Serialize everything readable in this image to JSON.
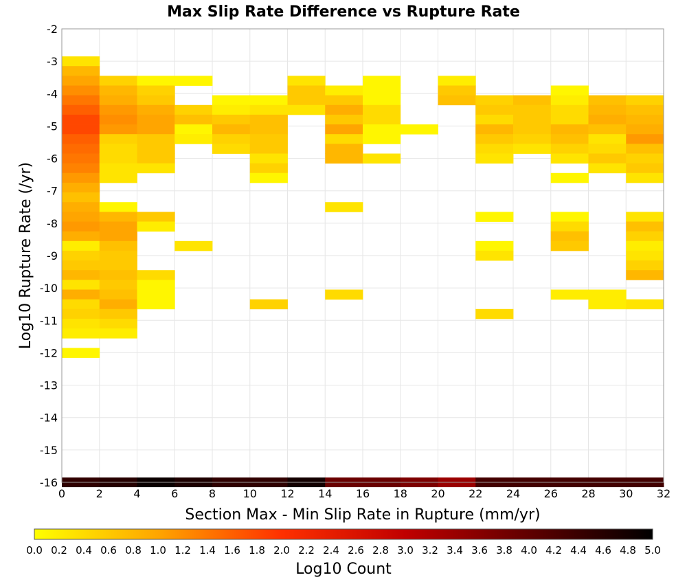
{
  "chart_data": {
    "type": "heatmap",
    "title": "Max Slip Rate Difference vs Rupture Rate",
    "xlabel": "Section Max - Min Slip Rate in Rupture (mm/yr)",
    "ylabel": "Log10 Rupture Rate (/yr)",
    "xlim": [
      0,
      32
    ],
    "ylim": [
      -16,
      -2
    ],
    "x_ticks": [
      "0",
      "2",
      "4",
      "6",
      "8",
      "10",
      "12",
      "14",
      "16",
      "18",
      "20",
      "22",
      "24",
      "26",
      "28",
      "30",
      "32"
    ],
    "y_ticks": [
      "-2",
      "-3",
      "-4",
      "-5",
      "-6",
      "-7",
      "-8",
      "-9",
      "-10",
      "-11",
      "-12",
      "-13",
      "-14",
      "-15",
      "-16"
    ],
    "grid": true,
    "x_bin_width": 2,
    "y_bin_height": 0.3,
    "colorbar": {
      "label": "Log10 Count",
      "min": 0.0,
      "max": 5.0,
      "ticks": [
        "0.0",
        "0.2",
        "0.4",
        "0.6",
        "0.8",
        "1.0",
        "1.2",
        "1.4",
        "1.6",
        "1.8",
        "2.0",
        "2.2",
        "2.4",
        "2.6",
        "2.8",
        "3.0",
        "3.2",
        "3.4",
        "3.6",
        "3.8",
        "4.0",
        "4.2",
        "4.4",
        "4.6",
        "4.8",
        "5.0"
      ],
      "colors": [
        "#ffff00",
        "#ffa500",
        "#ff3000",
        "#c00000",
        "#600000",
        "#000000"
      ]
    },
    "cells": [
      {
        "x": 0,
        "y": -3.0,
        "v": 0.3
      },
      {
        "x": 0,
        "y": -3.3,
        "v": 0.8
      },
      {
        "x": 0,
        "y": -3.6,
        "v": 1.0
      },
      {
        "x": 0,
        "y": -3.9,
        "v": 1.2
      },
      {
        "x": 0,
        "y": -4.2,
        "v": 1.4
      },
      {
        "x": 0,
        "y": -4.5,
        "v": 1.6
      },
      {
        "x": 0,
        "y": -4.8,
        "v": 1.8
      },
      {
        "x": 0,
        "y": -5.1,
        "v": 1.8
      },
      {
        "x": 0,
        "y": -5.4,
        "v": 1.6
      },
      {
        "x": 0,
        "y": -5.7,
        "v": 1.5
      },
      {
        "x": 0,
        "y": -6.0,
        "v": 1.4
      },
      {
        "x": 0,
        "y": -6.3,
        "v": 1.3
      },
      {
        "x": 0,
        "y": -6.6,
        "v": 1.1
      },
      {
        "x": 0,
        "y": -6.9,
        "v": 0.9
      },
      {
        "x": 0,
        "y": -7.2,
        "v": 0.7
      },
      {
        "x": 0,
        "y": -7.5,
        "v": 0.9
      },
      {
        "x": 0,
        "y": -7.8,
        "v": 1.0
      },
      {
        "x": 0,
        "y": -8.1,
        "v": 1.1
      },
      {
        "x": 0,
        "y": -8.4,
        "v": 0.9
      },
      {
        "x": 0,
        "y": -8.7,
        "v": 0.2
      },
      {
        "x": 0,
        "y": -9.0,
        "v": 0.5
      },
      {
        "x": 0,
        "y": -9.3,
        "v": 0.6
      },
      {
        "x": 0,
        "y": -9.6,
        "v": 0.8
      },
      {
        "x": 0,
        "y": -9.9,
        "v": 0.3
      },
      {
        "x": 0,
        "y": -10.2,
        "v": 0.9
      },
      {
        "x": 0,
        "y": -10.5,
        "v": 0.4
      },
      {
        "x": 0,
        "y": -10.8,
        "v": 0.5
      },
      {
        "x": 0,
        "y": -11.1,
        "v": 0.3
      },
      {
        "x": 0,
        "y": -11.4,
        "v": 0.2
      },
      {
        "x": 0,
        "y": -12.0,
        "v": 0.1
      },
      {
        "x": 2,
        "y": -3.6,
        "v": 0.5
      },
      {
        "x": 2,
        "y": -3.9,
        "v": 0.8
      },
      {
        "x": 2,
        "y": -4.2,
        "v": 0.9
      },
      {
        "x": 2,
        "y": -4.5,
        "v": 1.1
      },
      {
        "x": 2,
        "y": -4.8,
        "v": 1.2
      },
      {
        "x": 2,
        "y": -5.1,
        "v": 1.1
      },
      {
        "x": 2,
        "y": -5.4,
        "v": 0.5
      },
      {
        "x": 2,
        "y": -5.7,
        "v": 0.4
      },
      {
        "x": 2,
        "y": -6.0,
        "v": 0.4
      },
      {
        "x": 2,
        "y": -6.3,
        "v": 0.3
      },
      {
        "x": 2,
        "y": -6.6,
        "v": 0.3
      },
      {
        "x": 2,
        "y": -7.5,
        "v": 0.1
      },
      {
        "x": 2,
        "y": -7.8,
        "v": 0.8
      },
      {
        "x": 2,
        "y": -8.1,
        "v": 1.0
      },
      {
        "x": 2,
        "y": -8.4,
        "v": 1.0
      },
      {
        "x": 2,
        "y": -8.7,
        "v": 0.7
      },
      {
        "x": 2,
        "y": -9.0,
        "v": 0.6
      },
      {
        "x": 2,
        "y": -9.3,
        "v": 0.6
      },
      {
        "x": 2,
        "y": -9.6,
        "v": 0.7
      },
      {
        "x": 2,
        "y": -9.9,
        "v": 0.6
      },
      {
        "x": 2,
        "y": -10.2,
        "v": 0.7
      },
      {
        "x": 2,
        "y": -10.5,
        "v": 0.9
      },
      {
        "x": 2,
        "y": -10.8,
        "v": 0.6
      },
      {
        "x": 2,
        "y": -11.1,
        "v": 0.4
      },
      {
        "x": 2,
        "y": -11.4,
        "v": 0.2
      },
      {
        "x": 4,
        "y": -3.6,
        "v": 0.1
      },
      {
        "x": 4,
        "y": -3.9,
        "v": 0.5
      },
      {
        "x": 4,
        "y": -4.2,
        "v": 0.6
      },
      {
        "x": 4,
        "y": -4.5,
        "v": 0.9
      },
      {
        "x": 4,
        "y": -4.8,
        "v": 1.0
      },
      {
        "x": 4,
        "y": -5.1,
        "v": 1.0
      },
      {
        "x": 4,
        "y": -5.4,
        "v": 0.6
      },
      {
        "x": 4,
        "y": -5.7,
        "v": 0.6
      },
      {
        "x": 4,
        "y": -6.0,
        "v": 0.6
      },
      {
        "x": 4,
        "y": -6.3,
        "v": 0.3
      },
      {
        "x": 4,
        "y": -7.8,
        "v": 0.6
      },
      {
        "x": 4,
        "y": -8.1,
        "v": 0.2
      },
      {
        "x": 4,
        "y": -9.6,
        "v": 0.4
      },
      {
        "x": 4,
        "y": -9.9,
        "v": 0.1
      },
      {
        "x": 4,
        "y": -10.2,
        "v": 0.1
      },
      {
        "x": 4,
        "y": -10.5,
        "v": 0.1
      },
      {
        "x": 6,
        "y": -3.6,
        "v": 0.1
      },
      {
        "x": 6,
        "y": -4.5,
        "v": 0.5
      },
      {
        "x": 6,
        "y": -4.8,
        "v": 0.7
      },
      {
        "x": 6,
        "y": -5.1,
        "v": 0.1
      },
      {
        "x": 6,
        "y": -5.4,
        "v": 0.2
      },
      {
        "x": 6,
        "y": -8.7,
        "v": 0.3
      },
      {
        "x": 8,
        "y": -4.2,
        "v": 0.1
      },
      {
        "x": 8,
        "y": -4.5,
        "v": 0.2
      },
      {
        "x": 8,
        "y": -4.8,
        "v": 0.6
      },
      {
        "x": 8,
        "y": -5.1,
        "v": 0.8
      },
      {
        "x": 8,
        "y": -5.4,
        "v": 0.5
      },
      {
        "x": 8,
        "y": -5.7,
        "v": 0.4
      },
      {
        "x": 10,
        "y": -4.2,
        "v": 0.1
      },
      {
        "x": 10,
        "y": -4.5,
        "v": 0.3
      },
      {
        "x": 10,
        "y": -4.8,
        "v": 0.7
      },
      {
        "x": 10,
        "y": -5.1,
        "v": 0.7
      },
      {
        "x": 10,
        "y": -5.4,
        "v": 0.6
      },
      {
        "x": 10,
        "y": -5.7,
        "v": 0.6
      },
      {
        "x": 10,
        "y": -6.0,
        "v": 0.3
      },
      {
        "x": 10,
        "y": -6.3,
        "v": 0.5
      },
      {
        "x": 10,
        "y": -6.6,
        "v": 0.1
      },
      {
        "x": 10,
        "y": -10.5,
        "v": 0.5
      },
      {
        "x": 12,
        "y": -3.6,
        "v": 0.3
      },
      {
        "x": 12,
        "y": -3.9,
        "v": 0.6
      },
      {
        "x": 12,
        "y": -4.2,
        "v": 0.6
      },
      {
        "x": 12,
        "y": -4.5,
        "v": 0.3
      },
      {
        "x": 14,
        "y": -3.9,
        "v": 0.2
      },
      {
        "x": 14,
        "y": -4.2,
        "v": 0.6
      },
      {
        "x": 14,
        "y": -4.5,
        "v": 0.9
      },
      {
        "x": 14,
        "y": -4.8,
        "v": 0.6
      },
      {
        "x": 14,
        "y": -5.1,
        "v": 1.0
      },
      {
        "x": 14,
        "y": -5.4,
        "v": 0.4
      },
      {
        "x": 14,
        "y": -5.7,
        "v": 0.8
      },
      {
        "x": 14,
        "y": -6.0,
        "v": 0.8
      },
      {
        "x": 14,
        "y": -7.5,
        "v": 0.3
      },
      {
        "x": 14,
        "y": -10.2,
        "v": 0.4
      },
      {
        "x": 16,
        "y": -3.6,
        "v": 0.1
      },
      {
        "x": 16,
        "y": -3.9,
        "v": 0.1
      },
      {
        "x": 16,
        "y": -4.2,
        "v": 0.1
      },
      {
        "x": 16,
        "y": -4.5,
        "v": 0.4
      },
      {
        "x": 16,
        "y": -4.8,
        "v": 0.4
      },
      {
        "x": 16,
        "y": -5.1,
        "v": 0.1
      },
      {
        "x": 16,
        "y": -5.4,
        "v": 0.1
      },
      {
        "x": 16,
        "y": -6.0,
        "v": 0.3
      },
      {
        "x": 18,
        "y": -5.1,
        "v": 0.1
      },
      {
        "x": 20,
        "y": -3.6,
        "v": 0.2
      },
      {
        "x": 20,
        "y": -3.9,
        "v": 0.6
      },
      {
        "x": 20,
        "y": -4.2,
        "v": 0.7
      },
      {
        "x": 22,
        "y": -4.2,
        "v": 0.5
      },
      {
        "x": 22,
        "y": -4.5,
        "v": 0.6
      },
      {
        "x": 22,
        "y": -4.8,
        "v": 0.4
      },
      {
        "x": 22,
        "y": -5.1,
        "v": 0.8
      },
      {
        "x": 22,
        "y": -5.4,
        "v": 0.6
      },
      {
        "x": 22,
        "y": -5.7,
        "v": 0.4
      },
      {
        "x": 22,
        "y": -6.0,
        "v": 0.3
      },
      {
        "x": 22,
        "y": -7.8,
        "v": 0.1
      },
      {
        "x": 22,
        "y": -8.7,
        "v": 0.1
      },
      {
        "x": 22,
        "y": -9.0,
        "v": 0.3
      },
      {
        "x": 22,
        "y": -10.8,
        "v": 0.4
      },
      {
        "x": 24,
        "y": -4.2,
        "v": 0.7
      },
      {
        "x": 24,
        "y": -4.5,
        "v": 0.6
      },
      {
        "x": 24,
        "y": -4.8,
        "v": 0.6
      },
      {
        "x": 24,
        "y": -5.1,
        "v": 0.6
      },
      {
        "x": 24,
        "y": -5.4,
        "v": 0.5
      },
      {
        "x": 24,
        "y": -5.7,
        "v": 0.3
      },
      {
        "x": 26,
        "y": -3.9,
        "v": 0.1
      },
      {
        "x": 26,
        "y": -4.2,
        "v": 0.2
      },
      {
        "x": 26,
        "y": -4.5,
        "v": 0.4
      },
      {
        "x": 26,
        "y": -4.8,
        "v": 0.4
      },
      {
        "x": 26,
        "y": -5.1,
        "v": 0.8
      },
      {
        "x": 26,
        "y": -5.4,
        "v": 0.7
      },
      {
        "x": 26,
        "y": -5.7,
        "v": 0.5
      },
      {
        "x": 26,
        "y": -6.0,
        "v": 0.3
      },
      {
        "x": 26,
        "y": -6.6,
        "v": 0.1
      },
      {
        "x": 26,
        "y": -7.8,
        "v": 0.1
      },
      {
        "x": 26,
        "y": -8.1,
        "v": 0.4
      },
      {
        "x": 26,
        "y": -8.4,
        "v": 0.7
      },
      {
        "x": 26,
        "y": -8.7,
        "v": 0.6
      },
      {
        "x": 26,
        "y": -10.2,
        "v": 0.2
      },
      {
        "x": 28,
        "y": -4.2,
        "v": 0.7
      },
      {
        "x": 28,
        "y": -4.5,
        "v": 0.8
      },
      {
        "x": 28,
        "y": -4.8,
        "v": 0.9
      },
      {
        "x": 28,
        "y": -5.1,
        "v": 0.7
      },
      {
        "x": 28,
        "y": -5.4,
        "v": 0.3
      },
      {
        "x": 28,
        "y": -5.7,
        "v": 0.4
      },
      {
        "x": 28,
        "y": -6.0,
        "v": 0.6
      },
      {
        "x": 28,
        "y": -6.3,
        "v": 0.3
      },
      {
        "x": 28,
        "y": -10.2,
        "v": 0.2
      },
      {
        "x": 28,
        "y": -10.5,
        "v": 0.2
      },
      {
        "x": 30,
        "y": -4.2,
        "v": 0.5
      },
      {
        "x": 30,
        "y": -4.5,
        "v": 0.7
      },
      {
        "x": 30,
        "y": -4.8,
        "v": 0.8
      },
      {
        "x": 30,
        "y": -5.1,
        "v": 0.9
      },
      {
        "x": 30,
        "y": -5.4,
        "v": 1.1
      },
      {
        "x": 30,
        "y": -5.7,
        "v": 0.7
      },
      {
        "x": 30,
        "y": -6.0,
        "v": 0.5
      },
      {
        "x": 30,
        "y": -6.3,
        "v": 0.6
      },
      {
        "x": 30,
        "y": -6.6,
        "v": 0.3
      },
      {
        "x": 30,
        "y": -7.8,
        "v": 0.3
      },
      {
        "x": 30,
        "y": -8.1,
        "v": 0.7
      },
      {
        "x": 30,
        "y": -8.4,
        "v": 0.5
      },
      {
        "x": 30,
        "y": -8.7,
        "v": 0.2
      },
      {
        "x": 30,
        "y": -9.0,
        "v": 0.3
      },
      {
        "x": 30,
        "y": -9.3,
        "v": 0.5
      },
      {
        "x": 30,
        "y": -9.6,
        "v": 0.8
      },
      {
        "x": 30,
        "y": -10.5,
        "v": 0.3
      }
    ],
    "bottom_row": {
      "y": -16,
      "values": [
        4.5,
        4.6,
        4.9,
        4.7,
        4.5,
        4.5,
        4.8,
        3.9,
        3.9,
        3.7,
        3.4,
        4.3,
        4.3,
        4.3,
        4.3,
        4.3
      ]
    }
  }
}
